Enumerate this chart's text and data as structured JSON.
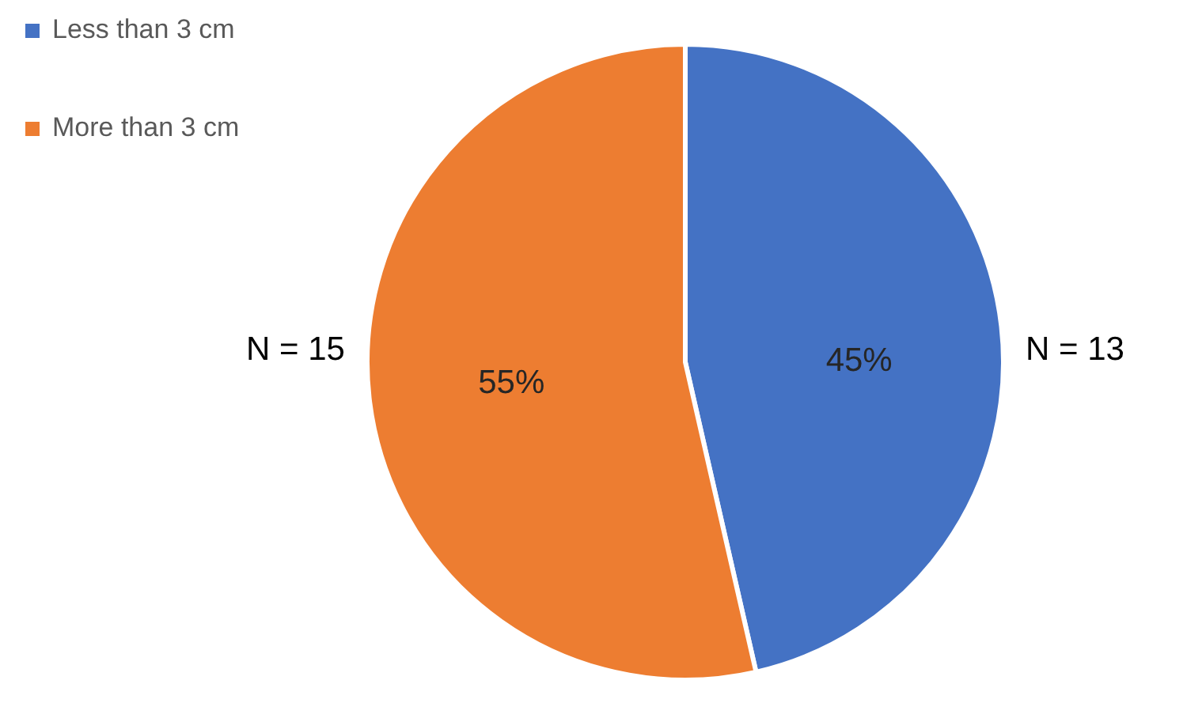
{
  "chart_data": {
    "type": "pie",
    "categories": [
      "Less than 3 cm",
      "More than 3 cm"
    ],
    "values": [
      13,
      15
    ],
    "colors": [
      "#4472c4",
      "#ed7d31"
    ],
    "value_labels": [
      "N = 13",
      "N = 15"
    ],
    "annotations": [
      "45%",
      "55%"
    ],
    "legend": "top left"
  }
}
